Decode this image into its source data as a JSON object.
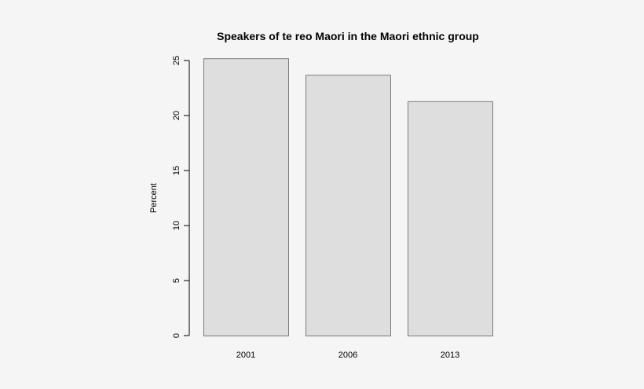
{
  "chart_data": {
    "type": "bar",
    "title": "Speakers of te reo Maori in the Maori ethnic group",
    "xlabel": "",
    "ylabel": "Percent",
    "categories": [
      "2001",
      "2006",
      "2013"
    ],
    "values": [
      25.2,
      23.7,
      21.3
    ],
    "ylim": [
      0,
      25
    ],
    "yticks": [
      0,
      5,
      10,
      15,
      20,
      25
    ],
    "grid": false,
    "legend": "none",
    "colors": {
      "bar_fill": "#dedede",
      "bar_stroke": "#7a7a7a",
      "background": "#f5f5f5"
    }
  }
}
